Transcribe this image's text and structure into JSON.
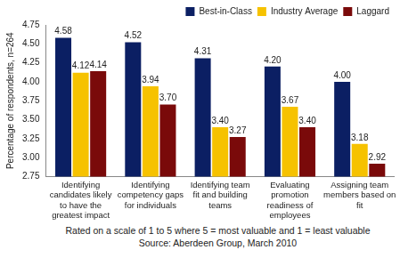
{
  "chart_data": {
    "type": "bar",
    "y_label": "Percentage of respondents, n=264",
    "categories": [
      "Identifying candidates likely to have the greatest impact",
      "Identifying competency gaps for individuals",
      "Identifying team fit and building teams",
      "Evaluating promotion readiness of employees",
      "Assigning team members based on fit"
    ],
    "series": [
      {
        "name": "Best-in-Class",
        "color": "#0b1f63",
        "values": [
          4.58,
          4.52,
          4.31,
          4.2,
          4.0
        ],
        "value_labels": [
          "4.58",
          "4.52",
          "4.31",
          "4.20",
          "4.00"
        ]
      },
      {
        "name": "Industry Average",
        "color": "#f6c200",
        "values": [
          4.12,
          3.94,
          3.4,
          3.67,
          3.18
        ],
        "value_labels": [
          "4.12",
          "3.94",
          "3.40",
          "3.67",
          "3.18"
        ]
      },
      {
        "name": "Laggard",
        "color": "#7a0a0a",
        "values": [
          4.14,
          3.7,
          3.27,
          3.4,
          2.92
        ],
        "value_labels": [
          "4.14",
          "3.70",
          "3.27",
          "3.40",
          "2.92"
        ]
      }
    ],
    "ylim": [
      2.75,
      4.75
    ],
    "yticks": [
      2.75,
      {
        "value": 3,
        "label": "3.00"
      },
      3.25,
      {
        "value": 3.5,
        "label": "3.50"
      },
      3.75,
      {
        "value": 4,
        "label": "4.00"
      },
      4.25,
      {
        "value": 4.5,
        "label": "4.50"
      },
      4.75
    ],
    "grid": false,
    "legend": "top-right",
    "data_labels": true,
    "annotations": [
      "Rated on a scale of 1 to 5 where 5 = most valuable and 1 = least valuable",
      "Source: Aberdeen Group, March 2010"
    ]
  }
}
